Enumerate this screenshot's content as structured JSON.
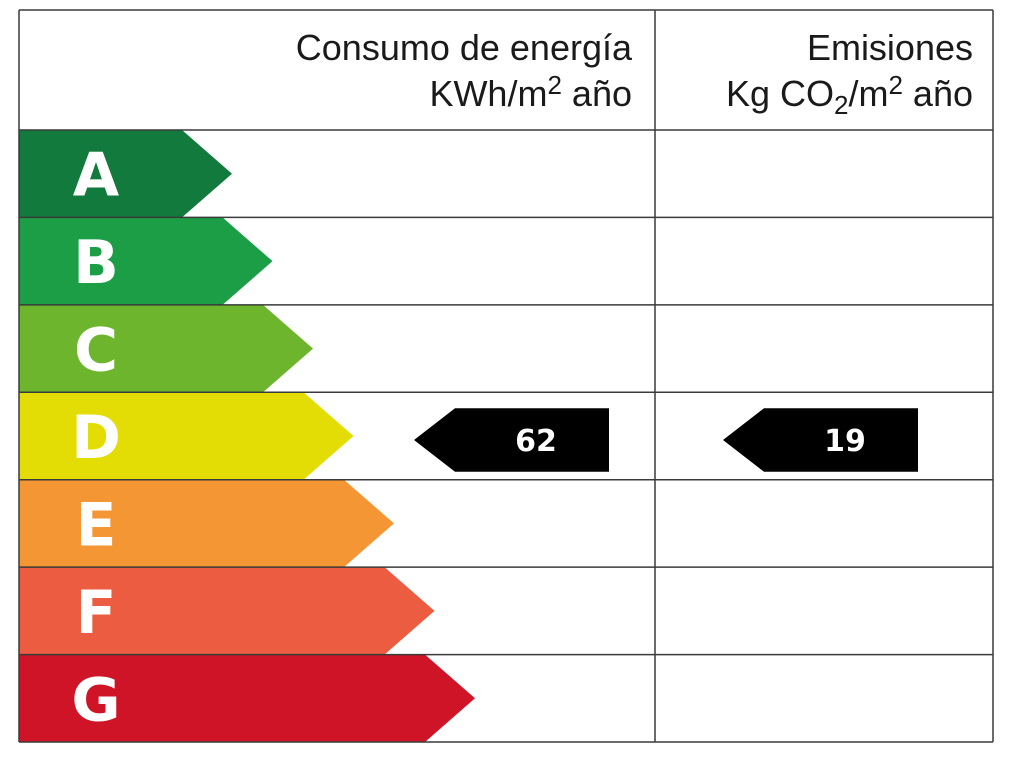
{
  "energy_column": {
    "line1": "Consumo de energía",
    "line2_prefix": "KWh/m",
    "line2_sup": "2",
    "line2_suffix": " año"
  },
  "emissions_column": {
    "line1": "Emisiones",
    "line2_prefix": "Kg CO",
    "line2_sub": "2",
    "line2_mid": "/m",
    "line2_sup": "2",
    "line2_suffix": " año"
  },
  "classes": [
    {
      "letter": "A",
      "color": "#137a3d"
    },
    {
      "letter": "B",
      "color": "#1b9e46"
    },
    {
      "letter": "C",
      "color": "#6cb52d"
    },
    {
      "letter": "D",
      "color": "#e3dd05"
    },
    {
      "letter": "E",
      "color": "#f39633"
    },
    {
      "letter": "F",
      "color": "#eb5c40"
    },
    {
      "letter": "G",
      "color": "#cf1427"
    }
  ],
  "rating": {
    "class": "D",
    "energy_value": "62",
    "emissions_value": "19"
  }
}
